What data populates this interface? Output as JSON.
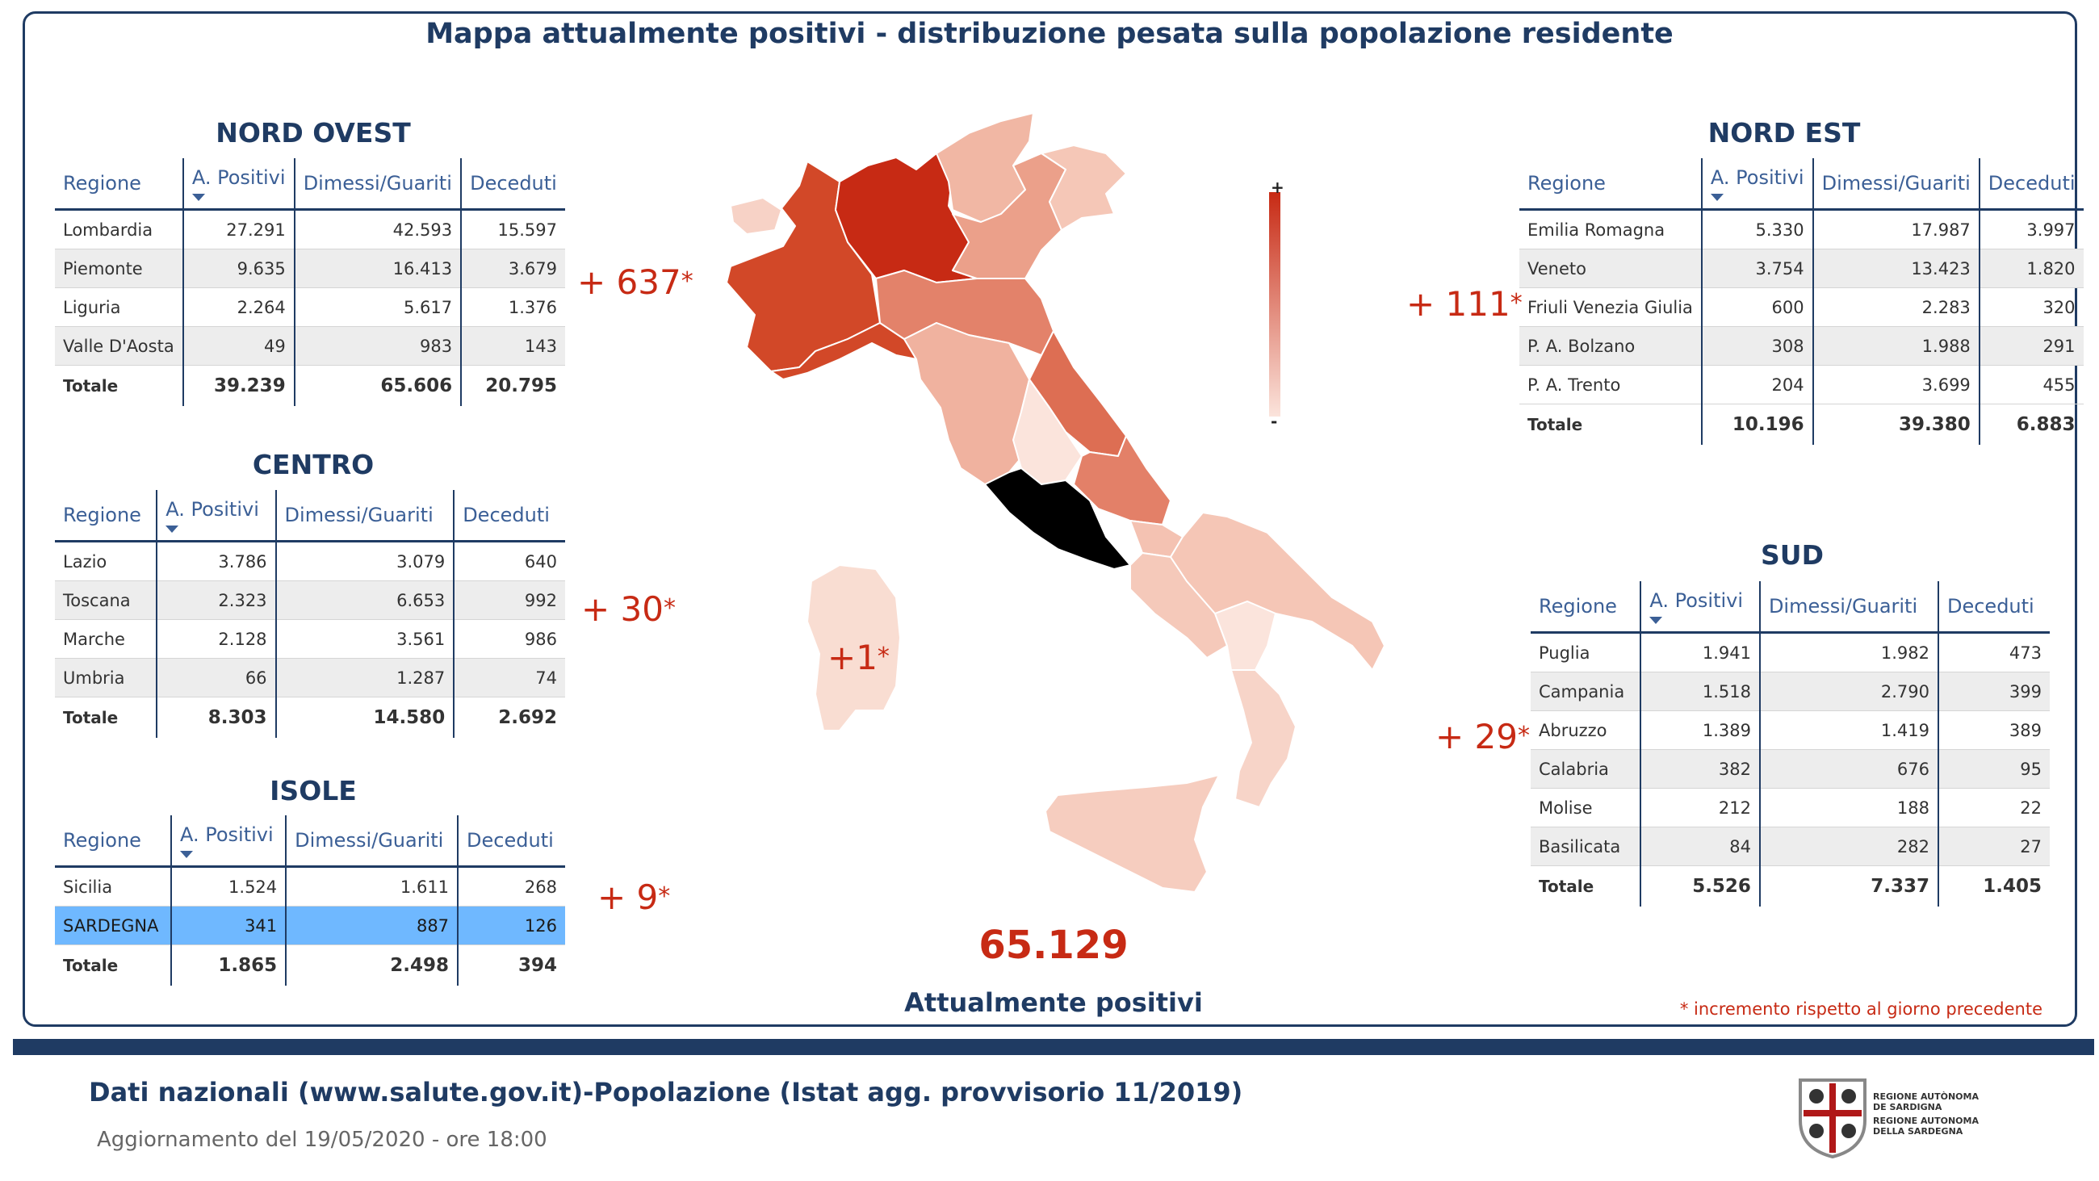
{
  "title": "Mappa attualmente positivi - distribuzione pesata sulla popolazione residente",
  "headers": {
    "regione": "Regione",
    "positivi": "A. Positivi",
    "dimessi": "Dimessi/Guariti",
    "deceduti": "Deceduti"
  },
  "nord_ovest": {
    "title": "NORD OVEST",
    "increment": "+ 637",
    "star": "*",
    "rows": [
      {
        "name": "Lombardia",
        "pos": "27.291",
        "dim": "42.593",
        "dec": "15.597"
      },
      {
        "name": "Piemonte",
        "pos": "9.635",
        "dim": "16.413",
        "dec": "3.679"
      },
      {
        "name": "Liguria",
        "pos": "2.264",
        "dim": "5.617",
        "dec": "1.376"
      },
      {
        "name": "Valle D'Aosta",
        "pos": "49",
        "dim": "983",
        "dec": "143"
      }
    ],
    "total": {
      "label": "Totale",
      "pos": "39.239",
      "dim": "65.606",
      "dec": "20.795"
    }
  },
  "centro": {
    "title": "CENTRO",
    "increment": "+ 30",
    "star": "*",
    "rows": [
      {
        "name": "Lazio",
        "pos": "3.786",
        "dim": "3.079",
        "dec": "640"
      },
      {
        "name": "Toscana",
        "pos": "2.323",
        "dim": "6.653",
        "dec": "992"
      },
      {
        "name": "Marche",
        "pos": "2.128",
        "dim": "3.561",
        "dec": "986"
      },
      {
        "name": "Umbria",
        "pos": "66",
        "dim": "1.287",
        "dec": "74"
      }
    ],
    "total": {
      "label": "Totale",
      "pos": "8.303",
      "dim": "14.580",
      "dec": "2.692"
    }
  },
  "isole": {
    "title": "ISOLE",
    "increment": "+ 9",
    "star": "*",
    "rows": [
      {
        "name": "Sicilia",
        "pos": "1.524",
        "dim": "1.611",
        "dec": "268"
      },
      {
        "name": "SARDEGNA",
        "pos": "341",
        "dim": "887",
        "dec": "126"
      }
    ],
    "total": {
      "label": "Totale",
      "pos": "1.865",
      "dim": "2.498",
      "dec": "394"
    }
  },
  "nord_est": {
    "title": "NORD EST",
    "increment": "+ 111",
    "star": "*",
    "rows": [
      {
        "name": "Emilia Romagna",
        "pos": "5.330",
        "dim": "17.987",
        "dec": "3.997"
      },
      {
        "name": "Veneto",
        "pos": "3.754",
        "dim": "13.423",
        "dec": "1.820"
      },
      {
        "name": "Friuli Venezia Giulia",
        "pos": "600",
        "dim": "2.283",
        "dec": "320"
      },
      {
        "name": "P. A. Bolzano",
        "pos": "308",
        "dim": "1.988",
        "dec": "291"
      },
      {
        "name": "P. A. Trento",
        "pos": "204",
        "dim": "3.699",
        "dec": "455"
      }
    ],
    "total": {
      "label": "Totale",
      "pos": "10.196",
      "dim": "39.380",
      "dec": "6.883"
    }
  },
  "sud": {
    "title": "SUD",
    "increment": "+ 29",
    "star": "*",
    "rows": [
      {
        "name": "Puglia",
        "pos": "1.941",
        "dim": "1.982",
        "dec": "473"
      },
      {
        "name": "Campania",
        "pos": "1.518",
        "dim": "2.790",
        "dec": "399"
      },
      {
        "name": "Abruzzo",
        "pos": "1.389",
        "dim": "1.419",
        "dec": "389"
      },
      {
        "name": "Calabria",
        "pos": "382",
        "dim": "676",
        "dec": "95"
      },
      {
        "name": "Molise",
        "pos": "212",
        "dim": "188",
        "dec": "22"
      },
      {
        "name": "Basilicata",
        "pos": "84",
        "dim": "282",
        "dec": "27"
      }
    ],
    "total": {
      "label": "Totale",
      "pos": "5.526",
      "dim": "7.337",
      "dec": "1.405"
    }
  },
  "map": {
    "sardegna_increment": "+1",
    "star": "*",
    "legend_max": "+",
    "legend_min": "-",
    "colors": {
      "high": "#c72a14",
      "low": "#fbe4dc"
    }
  },
  "total_positivi": "65.129",
  "total_label": "Attualmente positivi",
  "footnote": "* incremento rispetto al giorno precedente",
  "footer": {
    "title": "Dati nazionali (www.salute.gov.it)-Popolazione (Istat agg. provvisorio 11/2019)",
    "updated": "Aggiornamento del 19/05/2020 - ore 18:00",
    "logo_line1": "REGIONE AUTÒNOMA",
    "logo_line2": "DE SARDIGNA",
    "logo_line3": "REGIONE AUTONOMA",
    "logo_line4": "DELLA SARDEGNA"
  }
}
